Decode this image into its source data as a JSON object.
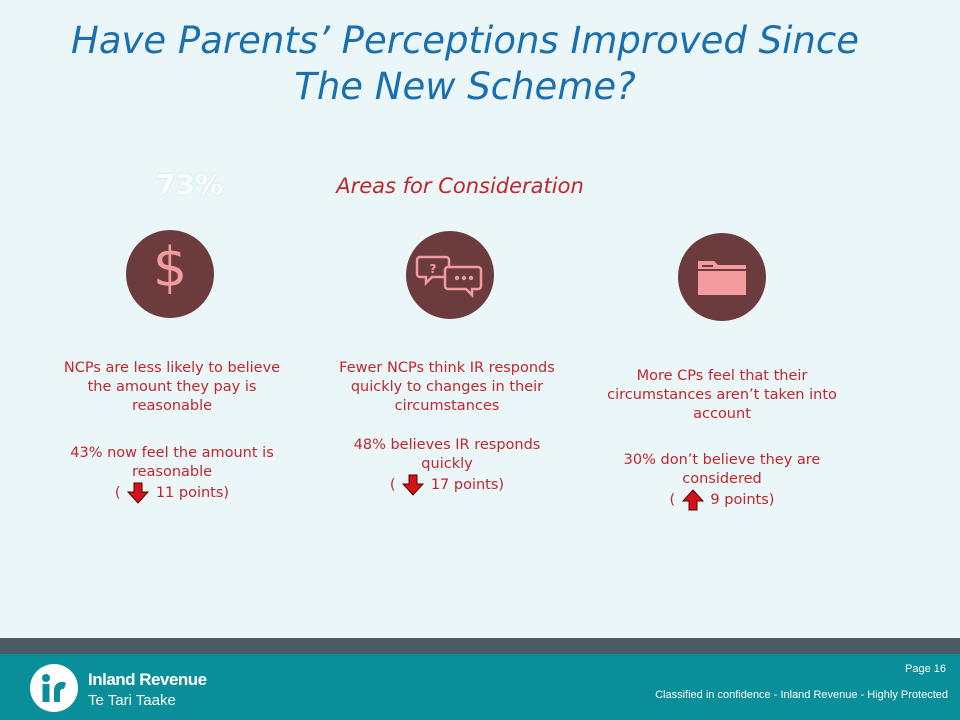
{
  "slide": {
    "title_line1": "Have Parents’ Perceptions Improved Since",
    "title_line2": "The New Scheme?",
    "ghost_value": "73%",
    "subtitle": "Areas for Consideration"
  },
  "columns": [
    {
      "icon": "dollar-icon",
      "text1": "NCPs are less likely to believe the amount they pay is reasonable",
      "text2": "43% now feel the amount is reasonable",
      "change_prefix": "(",
      "change_direction": "down",
      "change_suffix": "11 points)"
    },
    {
      "icon": "speech-bubbles-icon",
      "text1": "Fewer NCPs think IR responds quickly to changes in their circumstances",
      "text2": "48% believes IR responds quickly",
      "change_prefix": "(",
      "change_direction": "down",
      "change_suffix": "17 points)"
    },
    {
      "icon": "folder-icon",
      "text1": "More CPs feel that their circumstances aren’t taken into account",
      "text2": "30% don’t believe they are considered",
      "change_prefix": "(",
      "change_direction": "up",
      "change_suffix": "9 points)"
    }
  ],
  "footer": {
    "brand_line1": "Inland Revenue",
    "brand_line2": "Te Tari Taake",
    "page": "Page 16",
    "classification": "Classified in confidence - Inland Revenue - Highly Protected"
  },
  "colors": {
    "title": "#1a6fae",
    "accent_red": "#c0272d",
    "icon_circle": "#6b3b3e",
    "icon_fill": "#f29ca0",
    "footer": "#0a8f9a"
  }
}
